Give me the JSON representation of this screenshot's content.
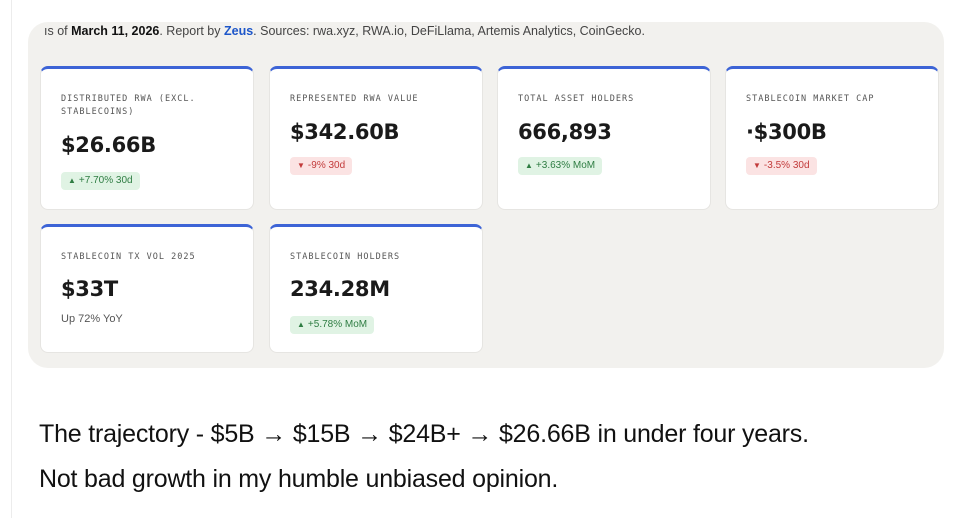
{
  "header": {
    "prefix": "ıs of ",
    "date": "March 11, 2026",
    "report_by": ". Report by ",
    "author": "Zeus",
    "sources": ". Sources: rwa.xyz, RWA.io, DeFiLlama, Artemis Analytics, CoinGecko."
  },
  "cards": [
    {
      "label": "DISTRIBUTED RWA (EXCL. STABLECOINS)",
      "value": "$26.66B",
      "badge": "+7.70% 30d",
      "trend": "up"
    },
    {
      "label": "REPRESENTED RWA VALUE",
      "value": "$342.60B",
      "badge": "-9% 30d",
      "trend": "down"
    },
    {
      "label": "TOTAL ASSET HOLDERS",
      "value": "666,893",
      "badge": "+3.63% MoM",
      "trend": "up"
    },
    {
      "label": "STABLECOIN MARKET CAP",
      "value": "·$300B",
      "badge": "-3.5% 30d",
      "trend": "down"
    },
    {
      "label": "STABLECOIN TX VOL 2025",
      "value": "$33T",
      "note": "Up 72% YoY"
    },
    {
      "label": "STABLECOIN HOLDERS",
      "value": "234.28M",
      "badge": "+5.78% MoM",
      "trend": "up"
    }
  ],
  "post": {
    "line1": "The trajectory -  $5B → $15B → $24B+ → $26.66B in under four years.",
    "line2": "Not bad growth in my humble unbiased opinion."
  },
  "colors": {
    "accent": "#3d64d6",
    "up": "#2f7d43",
    "down": "#c23b3b",
    "link": "#1d56c9"
  }
}
